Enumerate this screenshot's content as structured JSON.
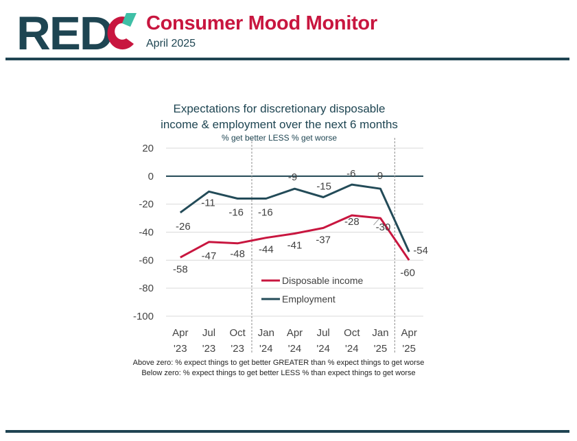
{
  "header": {
    "logo_text": "REDC",
    "title": "Consumer Mood Monitor",
    "subtitle": "April 2025"
  },
  "colors": {
    "brand_dark": "#1e4552",
    "brand_red": "#c8163f",
    "brand_teal": "#3fbfa6",
    "series_disposable": "#c8163f",
    "series_employment": "#234b58"
  },
  "chart_data": {
    "type": "line",
    "title_line1": "Expectations for discretionary disposable",
    "title_line2": "income & employment over the next 6 months",
    "subtitle": "% get better LESS % get worse",
    "categories": [
      [
        "Apr",
        "'23"
      ],
      [
        "Jul",
        "'23"
      ],
      [
        "Oct",
        "'23"
      ],
      [
        "Jan",
        "'24"
      ],
      [
        "Apr",
        "'24"
      ],
      [
        "Jul",
        "'24"
      ],
      [
        "Oct",
        "'24"
      ],
      [
        "Jan",
        "'25"
      ],
      [
        "Apr",
        "'25"
      ]
    ],
    "ylim": [
      -100,
      20
    ],
    "yticks": [
      "20",
      "0",
      "-20",
      "-40",
      "-60",
      "-80",
      "-100"
    ],
    "ytick_values": [
      20,
      0,
      -20,
      -40,
      -60,
      -80,
      -100
    ],
    "grid": true,
    "legend_placement": "bottom-right",
    "series": [
      {
        "name": "Disposable income",
        "values": [
          -58,
          -47,
          -48,
          -44,
          -41,
          -37,
          -28,
          -30,
          -60
        ],
        "labels": [
          "-58",
          "-47",
          "-48",
          "-44",
          "-41",
          "-37",
          "-28",
          "-30",
          "-60"
        ]
      },
      {
        "name": "Employment",
        "values": [
          -26,
          -11,
          -16,
          -16,
          -9,
          -15,
          -6,
          -9,
          -54
        ],
        "labels": [
          "-26",
          "-11",
          "-16",
          "-16",
          "-9",
          "-15",
          "-6",
          "-9",
          "-54"
        ]
      }
    ]
  },
  "footnotes": [
    "Above zero: % expect things to get better GREATER than % expect things to get worse",
    "Below zero: % expect things to get better LESS % than expect things to get worse"
  ]
}
